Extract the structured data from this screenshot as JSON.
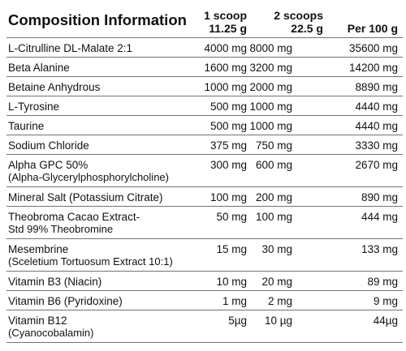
{
  "header": {
    "title": "Composition Information",
    "columns": [
      [
        "1 scoop",
        "11.25 g"
      ],
      [
        "2 scoops",
        "22.5 g"
      ],
      [
        "Per 100 g"
      ]
    ]
  },
  "table": {
    "rows": [
      {
        "name": [
          "L-Citrulline DL-Malate 2:1"
        ],
        "values": [
          "4000 mg",
          "8000 mg",
          "35600 mg"
        ]
      },
      {
        "name": [
          "Beta Alanine"
        ],
        "values": [
          "1600 mg",
          "3200 mg",
          "14200 mg"
        ]
      },
      {
        "name": [
          "Betaine Anhydrous"
        ],
        "values": [
          "1000 mg",
          "2000 mg",
          "8890 mg"
        ]
      },
      {
        "name": [
          "L-Tyrosine"
        ],
        "values": [
          "500 mg",
          "1000 mg",
          "4440 mg"
        ]
      },
      {
        "name": [
          "Taurine"
        ],
        "values": [
          "500 mg",
          "1000 mg",
          "4440 mg"
        ]
      },
      {
        "name": [
          "Sodium Chloride"
        ],
        "values": [
          "375 mg",
          "750 mg",
          "3330 mg"
        ]
      },
      {
        "name": [
          "Alpha GPC 50%",
          "(Alpha-Glycerylphosphorylcholine)"
        ],
        "values": [
          "300 mg",
          "600 mg",
          "2670 mg"
        ]
      },
      {
        "name": [
          "Mineral Salt (Potassium Citrate)"
        ],
        "values": [
          "100 mg",
          "200 mg",
          "890 mg"
        ]
      },
      {
        "name": [
          "Theobroma Cacao Extract-",
          "Std 99% Theobromine"
        ],
        "values": [
          "50 mg",
          "100 mg",
          "444 mg"
        ]
      },
      {
        "name": [
          "Mesembrine",
          "(Sceletium Tortuosum Extract 10:1)"
        ],
        "values": [
          "15 mg",
          "30 mg",
          "133 mg"
        ]
      },
      {
        "name": [
          "Vitamin B3 (Niacin)"
        ],
        "values": [
          "10 mg",
          "20 mg",
          "89 mg"
        ]
      },
      {
        "name": [
          "Vitamin B6 (Pyridoxine)"
        ],
        "values": [
          "1 mg",
          "2 mg",
          "9 mg"
        ]
      },
      {
        "name": [
          "Vitamin B12",
          "(Cyanocobalamin)"
        ],
        "values": [
          "5µg",
          "10 µg",
          "44µg"
        ]
      }
    ]
  }
}
